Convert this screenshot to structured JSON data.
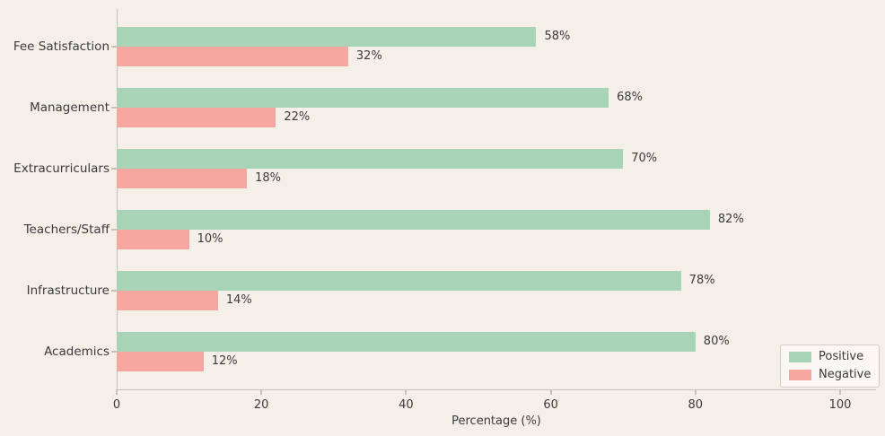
{
  "colors": {
    "background": "#f4efe9",
    "positive": "#a8d3b6",
    "negative": "#f6a7a0",
    "text": "#3b3b3b",
    "spine": "#c6c2bd",
    "legend_bg": "#fbf7f3",
    "legend_border": "#cfcbc6"
  },
  "chart_data": {
    "type": "bar",
    "orientation": "horizontal",
    "title": "",
    "xlabel": "Percentage (%)",
    "ylabel": "",
    "xlim": [
      0,
      100
    ],
    "xticks": [
      0,
      20,
      40,
      60,
      80,
      100
    ],
    "grid": false,
    "legend_position": "lower right",
    "categories": [
      "Fee Satisfaction",
      "Management",
      "Extracurriculars",
      "Teachers/Staff",
      "Infrastructure",
      "Academics"
    ],
    "series": [
      {
        "name": "Positive",
        "color": "#a8d3b6",
        "values": [
          58,
          68,
          70,
          82,
          78,
          80
        ],
        "labels": [
          "58%",
          "68%",
          "70%",
          "82%",
          "78%",
          "80%"
        ]
      },
      {
        "name": "Negative",
        "color": "#f6a7a0",
        "values": [
          32,
          22,
          18,
          10,
          14,
          12
        ],
        "labels": [
          "32%",
          "22%",
          "18%",
          "10%",
          "14%",
          "12%"
        ]
      }
    ]
  }
}
